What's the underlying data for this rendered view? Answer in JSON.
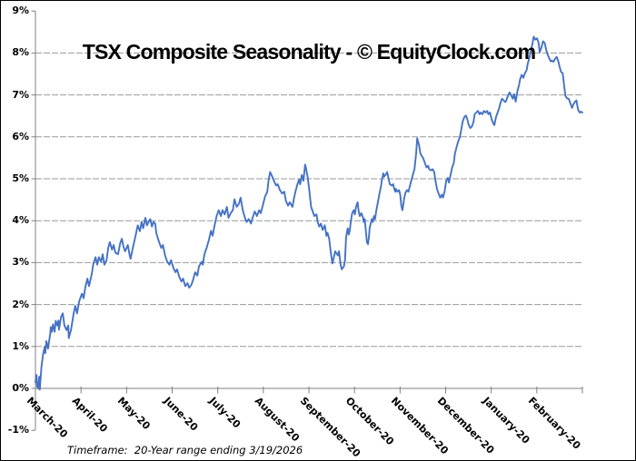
{
  "window": {
    "background": "#ffffff",
    "border_color": "#000000"
  },
  "chart_data": {
    "type": "line",
    "title": "TSX Composite Seasonality - © EquityClock.com",
    "footnote": "Timeframe:  20-Year range ending 3/19/2026",
    "legend": "none",
    "grid": true,
    "x_tick_labels": [
      "March-20",
      "April-20",
      "May-20",
      "June-20",
      "July-20",
      "August-20",
      "September-20",
      "October-20",
      "November-20",
      "December-20",
      "January-20",
      "February-20"
    ],
    "xlabel_rotation_deg": 45,
    "ylim": [
      -1,
      9
    ],
    "ytick_step": 1,
    "ytick_suffix": "%",
    "gridlines_at": [
      1,
      2,
      3,
      4,
      5,
      6,
      7,
      8
    ],
    "colors": {
      "line": "#4472C4",
      "grid": "#999999",
      "axis": "#808080",
      "text": "#000000"
    },
    "points": [
      [
        0.0,
        0.15
      ],
      [
        0.002,
        0.32
      ],
      [
        0.003,
        0.05
      ],
      [
        0.005,
        0.0
      ],
      [
        0.007,
        0.28
      ],
      [
        0.008,
        -0.03
      ],
      [
        0.011,
        0.51
      ],
      [
        0.014,
        0.81
      ],
      [
        0.017,
        0.99
      ],
      [
        0.018,
        0.84
      ],
      [
        0.02,
        1.13
      ],
      [
        0.023,
        0.95
      ],
      [
        0.027,
        1.3
      ],
      [
        0.028,
        1.46
      ],
      [
        0.03,
        1.35
      ],
      [
        0.032,
        1.53
      ],
      [
        0.035,
        1.35
      ],
      [
        0.037,
        1.61
      ],
      [
        0.04,
        1.5
      ],
      [
        0.042,
        1.62
      ],
      [
        0.043,
        1.4
      ],
      [
        0.047,
        1.71
      ],
      [
        0.05,
        1.79
      ],
      [
        0.053,
        1.5
      ],
      [
        0.057,
        1.39
      ],
      [
        0.06,
        1.5
      ],
      [
        0.061,
        1.2
      ],
      [
        0.065,
        1.39
      ],
      [
        0.07,
        1.79
      ],
      [
        0.073,
        1.97
      ],
      [
        0.076,
        1.79
      ],
      [
        0.08,
        2.08
      ],
      [
        0.085,
        2.26
      ],
      [
        0.088,
        2.15
      ],
      [
        0.091,
        2.4
      ],
      [
        0.095,
        2.62
      ],
      [
        0.098,
        2.44
      ],
      [
        0.103,
        2.73
      ],
      [
        0.106,
        2.98
      ],
      [
        0.11,
        3.13
      ],
      [
        0.113,
        2.95
      ],
      [
        0.116,
        3.13
      ],
      [
        0.12,
        3.02
      ],
      [
        0.123,
        3.2
      ],
      [
        0.126,
        2.95
      ],
      [
        0.13,
        3.06
      ],
      [
        0.133,
        3.35
      ],
      [
        0.136,
        3.49
      ],
      [
        0.14,
        3.31
      ],
      [
        0.143,
        3.42
      ],
      [
        0.146,
        3.24
      ],
      [
        0.151,
        3.2
      ],
      [
        0.155,
        3.46
      ],
      [
        0.158,
        3.57
      ],
      [
        0.161,
        3.38
      ],
      [
        0.164,
        3.27
      ],
      [
        0.169,
        3.42
      ],
      [
        0.172,
        3.2
      ],
      [
        0.174,
        3.09
      ],
      [
        0.178,
        3.35
      ],
      [
        0.183,
        3.64
      ],
      [
        0.187,
        3.89
      ],
      [
        0.191,
        3.75
      ],
      [
        0.194,
        3.97
      ],
      [
        0.197,
        3.82
      ],
      [
        0.201,
        4.07
      ],
      [
        0.204,
        3.89
      ],
      [
        0.208,
        4.0
      ],
      [
        0.21,
        4.04
      ],
      [
        0.213,
        3.86
      ],
      [
        0.216,
        3.97
      ],
      [
        0.219,
        3.93
      ],
      [
        0.221,
        3.71
      ],
      [
        0.226,
        3.49
      ],
      [
        0.23,
        3.35
      ],
      [
        0.233,
        3.42
      ],
      [
        0.237,
        3.17
      ],
      [
        0.241,
        3.02
      ],
      [
        0.245,
        2.95
      ],
      [
        0.248,
        3.06
      ],
      [
        0.252,
        2.88
      ],
      [
        0.256,
        2.77
      ],
      [
        0.259,
        2.84
      ],
      [
        0.263,
        2.66
      ],
      [
        0.267,
        2.55
      ],
      [
        0.27,
        2.62
      ],
      [
        0.274,
        2.44
      ],
      [
        0.278,
        2.51
      ],
      [
        0.281,
        2.4
      ],
      [
        0.285,
        2.47
      ],
      [
        0.288,
        2.58
      ],
      [
        0.292,
        2.77
      ],
      [
        0.296,
        2.69
      ],
      [
        0.299,
        2.91
      ],
      [
        0.304,
        3.02
      ],
      [
        0.306,
        2.95
      ],
      [
        0.309,
        3.2
      ],
      [
        0.313,
        3.35
      ],
      [
        0.317,
        3.53
      ],
      [
        0.321,
        3.76
      ],
      [
        0.324,
        3.64
      ],
      [
        0.327,
        3.86
      ],
      [
        0.331,
        4.1
      ],
      [
        0.335,
        4.25
      ],
      [
        0.339,
        4.11
      ],
      [
        0.342,
        4.25
      ],
      [
        0.346,
        4.15
      ],
      [
        0.35,
        4.33
      ],
      [
        0.353,
        4.07
      ],
      [
        0.357,
        4.18
      ],
      [
        0.361,
        4.25
      ],
      [
        0.364,
        4.51
      ],
      [
        0.368,
        4.33
      ],
      [
        0.372,
        4.4
      ],
      [
        0.375,
        4.55
      ],
      [
        0.379,
        4.25
      ],
      [
        0.383,
        4.07
      ],
      [
        0.386,
        3.97
      ],
      [
        0.39,
        4.04
      ],
      [
        0.394,
        3.93
      ],
      [
        0.397,
        4.07
      ],
      [
        0.401,
        4.22
      ],
      [
        0.405,
        4.11
      ],
      [
        0.409,
        4.25
      ],
      [
        0.412,
        4.18
      ],
      [
        0.415,
        4.33
      ],
      [
        0.42,
        4.58
      ],
      [
        0.424,
        4.69
      ],
      [
        0.426,
        4.95
      ],
      [
        0.429,
        5.16
      ],
      [
        0.433,
        5.05
      ],
      [
        0.436,
        4.95
      ],
      [
        0.44,
        4.84
      ],
      [
        0.443,
        4.87
      ],
      [
        0.447,
        4.73
      ],
      [
        0.451,
        4.65
      ],
      [
        0.455,
        4.69
      ],
      [
        0.458,
        4.47
      ],
      [
        0.462,
        4.36
      ],
      [
        0.465,
        4.44
      ],
      [
        0.47,
        4.33
      ],
      [
        0.473,
        4.55
      ],
      [
        0.476,
        4.73
      ],
      [
        0.479,
        4.87
      ],
      [
        0.482,
        4.98
      ],
      [
        0.484,
        4.87
      ],
      [
        0.487,
        5.09
      ],
      [
        0.49,
        4.95
      ],
      [
        0.493,
        5.34
      ],
      [
        0.495,
        5.23
      ],
      [
        0.498,
        5.02
      ],
      [
        0.501,
        4.69
      ],
      [
        0.504,
        4.33
      ],
      [
        0.507,
        4.22
      ],
      [
        0.51,
        4.11
      ],
      [
        0.514,
        4.15
      ],
      [
        0.516,
        3.97
      ],
      [
        0.519,
        3.86
      ],
      [
        0.522,
        3.93
      ],
      [
        0.525,
        3.78
      ],
      [
        0.529,
        3.89
      ],
      [
        0.532,
        3.64
      ],
      [
        0.534,
        3.71
      ],
      [
        0.537,
        3.57
      ],
      [
        0.54,
        3.24
      ],
      [
        0.543,
        2.98
      ],
      [
        0.545,
        3.09
      ],
      [
        0.548,
        3.27
      ],
      [
        0.553,
        3.17
      ],
      [
        0.555,
        3.27
      ],
      [
        0.558,
        2.95
      ],
      [
        0.56,
        2.84
      ],
      [
        0.564,
        2.91
      ],
      [
        0.566,
        3.05
      ],
      [
        0.568,
        3.6
      ],
      [
        0.571,
        3.82
      ],
      [
        0.573,
        3.67
      ],
      [
        0.575,
        3.78
      ],
      [
        0.576,
        3.93
      ],
      [
        0.579,
        4.18
      ],
      [
        0.582,
        4.25
      ],
      [
        0.584,
        4.15
      ],
      [
        0.586,
        4.33
      ],
      [
        0.589,
        4.44
      ],
      [
        0.591,
        4.22
      ],
      [
        0.593,
        4.11
      ],
      [
        0.596,
        4.18
      ],
      [
        0.599,
        4.07
      ],
      [
        0.6,
        3.97
      ],
      [
        0.602,
        4.04
      ],
      [
        0.604,
        3.78
      ],
      [
        0.606,
        3.49
      ],
      [
        0.608,
        3.44
      ],
      [
        0.61,
        3.64
      ],
      [
        0.611,
        3.82
      ],
      [
        0.613,
        3.93
      ],
      [
        0.615,
        4.04
      ],
      [
        0.617,
        3.97
      ],
      [
        0.619,
        4.11
      ],
      [
        0.621,
        4.04
      ],
      [
        0.623,
        4.22
      ],
      [
        0.626,
        4.44
      ],
      [
        0.629,
        4.65
      ],
      [
        0.632,
        4.84
      ],
      [
        0.633,
        4.95
      ],
      [
        0.636,
        5.13
      ],
      [
        0.637,
        5.05
      ],
      [
        0.64,
        5.09
      ],
      [
        0.643,
        5.16
      ],
      [
        0.646,
        4.98
      ],
      [
        0.648,
        4.87
      ],
      [
        0.651,
        4.84
      ],
      [
        0.654,
        4.87
      ],
      [
        0.656,
        4.76
      ],
      [
        0.658,
        4.69
      ],
      [
        0.659,
        4.76
      ],
      [
        0.662,
        4.69
      ],
      [
        0.665,
        4.73
      ],
      [
        0.667,
        4.62
      ],
      [
        0.669,
        4.36
      ],
      [
        0.671,
        4.25
      ],
      [
        0.672,
        4.33
      ],
      [
        0.674,
        4.51
      ],
      [
        0.676,
        4.65
      ],
      [
        0.679,
        4.73
      ],
      [
        0.682,
        4.69
      ],
      [
        0.684,
        4.8
      ],
      [
        0.687,
        4.95
      ],
      [
        0.69,
        5.09
      ],
      [
        0.693,
        5.23
      ],
      [
        0.696,
        5.6
      ],
      [
        0.698,
        5.97
      ],
      [
        0.701,
        5.82
      ],
      [
        0.704,
        5.6
      ],
      [
        0.707,
        5.53
      ],
      [
        0.709,
        5.49
      ],
      [
        0.712,
        5.38
      ],
      [
        0.715,
        5.27
      ],
      [
        0.718,
        5.31
      ],
      [
        0.72,
        5.23
      ],
      [
        0.723,
        5.2
      ],
      [
        0.726,
        5.23
      ],
      [
        0.729,
        5.16
      ],
      [
        0.731,
        4.98
      ],
      [
        0.734,
        4.76
      ],
      [
        0.737,
        4.65
      ],
      [
        0.74,
        4.55
      ],
      [
        0.743,
        4.62
      ],
      [
        0.745,
        4.55
      ],
      [
        0.748,
        4.69
      ],
      [
        0.751,
        4.95
      ],
      [
        0.754,
        5.02
      ],
      [
        0.756,
        4.91
      ],
      [
        0.759,
        5.09
      ],
      [
        0.762,
        5.27
      ],
      [
        0.765,
        5.38
      ],
      [
        0.767,
        5.6
      ],
      [
        0.77,
        5.75
      ],
      [
        0.773,
        5.89
      ],
      [
        0.776,
        6.0
      ],
      [
        0.778,
        6.14
      ],
      [
        0.781,
        6.36
      ],
      [
        0.784,
        6.47
      ],
      [
        0.787,
        6.51
      ],
      [
        0.79,
        6.4
      ],
      [
        0.792,
        6.29
      ],
      [
        0.795,
        6.21
      ],
      [
        0.798,
        6.25
      ],
      [
        0.801,
        6.36
      ],
      [
        0.803,
        6.54
      ],
      [
        0.806,
        6.58
      ],
      [
        0.809,
        6.62
      ],
      [
        0.812,
        6.54
      ],
      [
        0.814,
        6.58
      ],
      [
        0.817,
        6.54
      ],
      [
        0.82,
        6.62
      ],
      [
        0.823,
        6.58
      ],
      [
        0.826,
        6.62
      ],
      [
        0.828,
        6.54
      ],
      [
        0.831,
        6.58
      ],
      [
        0.834,
        6.42
      ],
      [
        0.837,
        6.32
      ],
      [
        0.839,
        6.28
      ],
      [
        0.842,
        6.47
      ],
      [
        0.845,
        6.58
      ],
      [
        0.848,
        6.69
      ],
      [
        0.85,
        6.8
      ],
      [
        0.853,
        6.91
      ],
      [
        0.856,
        6.87
      ],
      [
        0.859,
        6.83
      ],
      [
        0.861,
        6.87
      ],
      [
        0.864,
        6.98
      ],
      [
        0.867,
        7.06
      ],
      [
        0.87,
        6.98
      ],
      [
        0.873,
        6.91
      ],
      [
        0.875,
        7.02
      ],
      [
        0.878,
        6.84
      ],
      [
        0.881,
        7.08
      ],
      [
        0.884,
        7.23
      ],
      [
        0.886,
        7.37
      ],
      [
        0.889,
        7.48
      ],
      [
        0.892,
        7.41
      ],
      [
        0.895,
        7.52
      ],
      [
        0.898,
        7.59
      ],
      [
        0.9,
        7.74
      ],
      [
        0.903,
        7.88
      ],
      [
        0.906,
        8.06
      ],
      [
        0.909,
        8.24
      ],
      [
        0.911,
        8.39
      ],
      [
        0.914,
        8.32
      ],
      [
        0.917,
        8.35
      ],
      [
        0.92,
        8.24
      ],
      [
        0.922,
        8.02
      ],
      [
        0.925,
        8.13
      ],
      [
        0.928,
        8.28
      ],
      [
        0.931,
        8.24
      ],
      [
        0.934,
        8.06
      ],
      [
        0.936,
        7.98
      ],
      [
        0.939,
        7.88
      ],
      [
        0.942,
        7.8
      ],
      [
        0.944,
        7.82
      ],
      [
        0.947,
        7.79
      ],
      [
        0.95,
        7.86
      ],
      [
        0.953,
        7.91
      ],
      [
        0.956,
        7.8
      ],
      [
        0.958,
        7.69
      ],
      [
        0.961,
        7.55
      ],
      [
        0.964,
        7.52
      ],
      [
        0.967,
        7.19
      ],
      [
        0.969,
        6.98
      ],
      [
        0.972,
        6.92
      ],
      [
        0.975,
        6.91
      ],
      [
        0.978,
        6.8
      ],
      [
        0.981,
        6.69
      ],
      [
        0.983,
        6.76
      ],
      [
        0.986,
        6.83
      ],
      [
        0.989,
        6.87
      ],
      [
        0.992,
        6.65
      ],
      [
        0.995,
        6.58
      ],
      [
        0.997,
        6.6
      ],
      [
        1.0,
        6.58
      ]
    ]
  }
}
